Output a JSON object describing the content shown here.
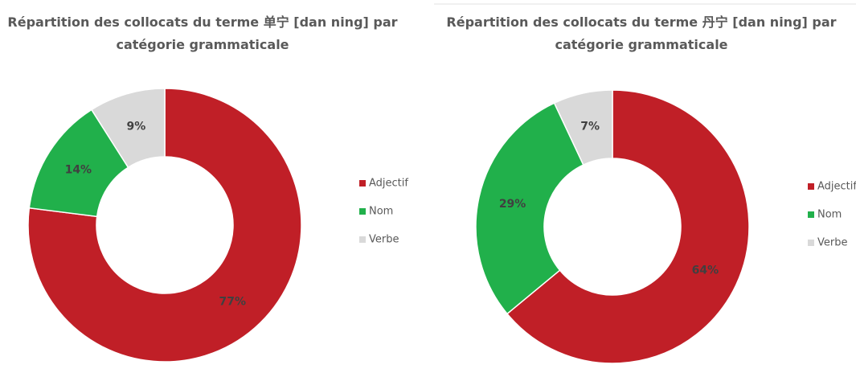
{
  "chart_data": [
    {
      "type": "pie",
      "donut": true,
      "title": "Répartition des collocats du terme 单宁 [dan ning] par catégorie grammaticale",
      "categories": [
        "Adjectif",
        "Nom",
        "Verbe"
      ],
      "values": [
        77,
        14,
        9
      ],
      "value_labels": [
        "77%",
        "14%",
        "9%"
      ],
      "colors": [
        "#c01f27",
        "#21b04b",
        "#d9d9d9"
      ],
      "legend": "right"
    },
    {
      "type": "pie",
      "donut": true,
      "title": "Répartition des collocats du terme 丹宁 [dan ning] par catégorie grammaticale",
      "categories": [
        "Adjectif",
        "Nom",
        "Verbe"
      ],
      "values": [
        64,
        29,
        7
      ],
      "value_labels": [
        "64%",
        "29%",
        "7%"
      ],
      "colors": [
        "#c01f27",
        "#21b04b",
        "#d9d9d9"
      ],
      "legend": "right"
    }
  ]
}
